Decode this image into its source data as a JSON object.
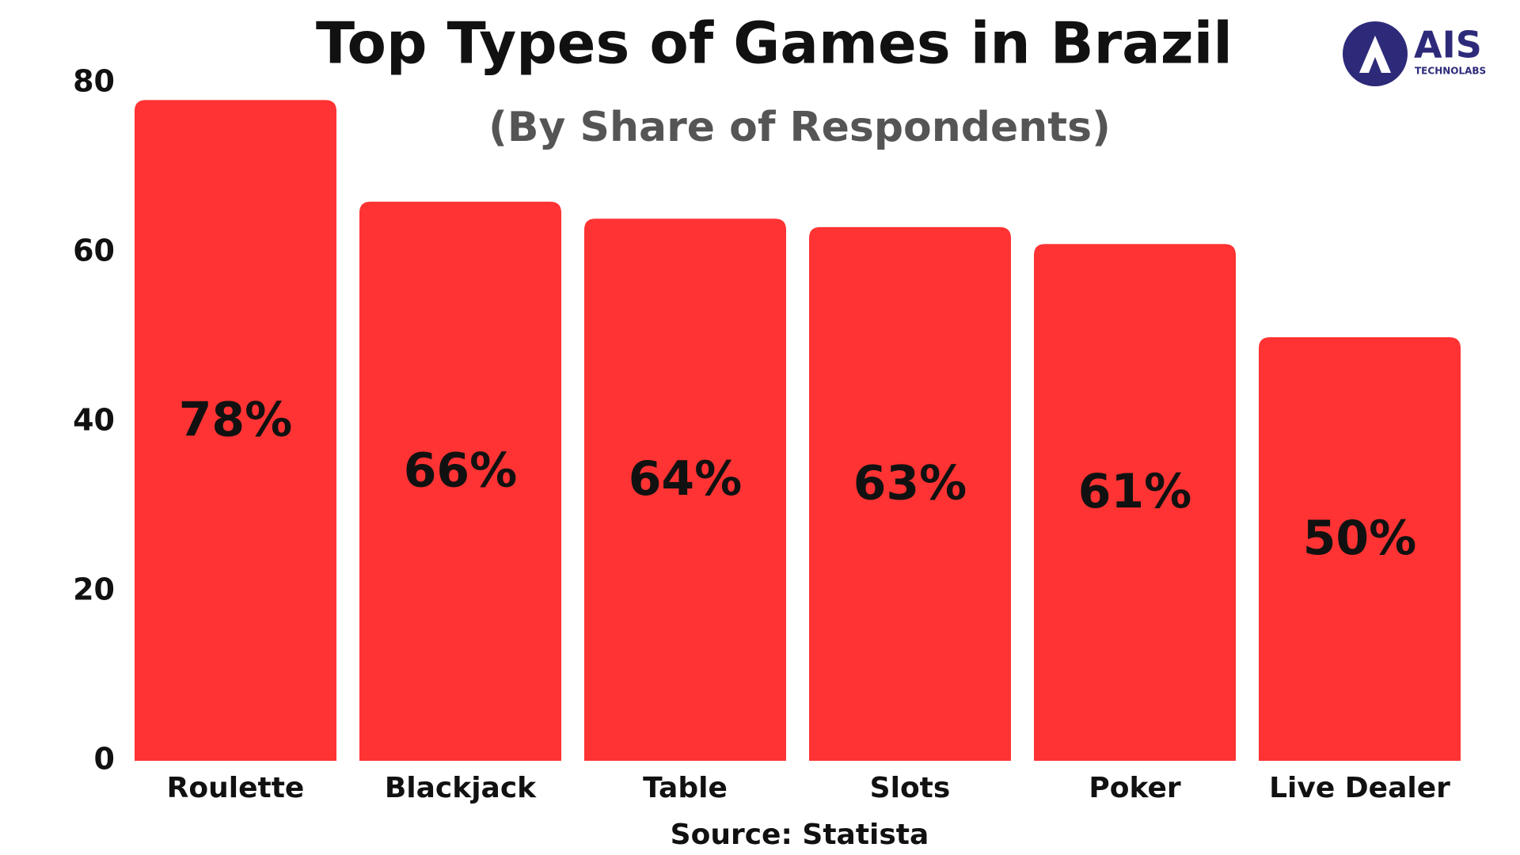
{
  "chart_data": {
    "type": "bar",
    "title": "Top Types of Games in Brazil",
    "subtitle": "(By Share of Respondents)",
    "source": "Source: Statista",
    "logo": {
      "text": "AIS",
      "subtext": "TECHNOLABS"
    },
    "categories": [
      "Roulette",
      "Blackjack",
      "Table",
      "Slots",
      "Poker",
      "Live Dealer"
    ],
    "values": [
      78,
      66,
      64,
      63,
      61,
      50
    ],
    "value_labels": [
      "78%",
      "66%",
      "64%",
      "63%",
      "61%",
      "50%"
    ],
    "color": "#ff3333",
    "ylim": [
      0,
      80
    ],
    "yticks": [
      0,
      20,
      40,
      60,
      80
    ],
    "grid": false
  }
}
